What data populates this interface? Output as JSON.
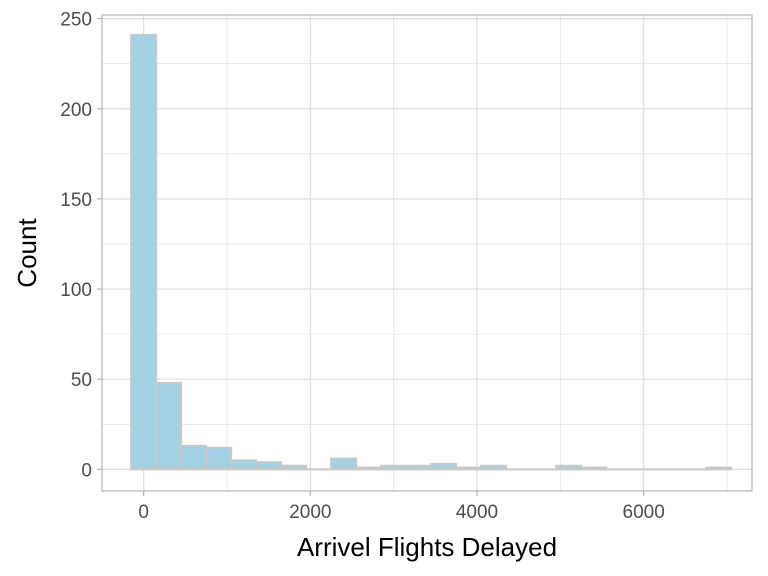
{
  "chart_data": {
    "type": "bar",
    "title": "",
    "xlabel": "Arrivel Flights Delayed",
    "ylabel": "Count",
    "xlim": [
      -500,
      7300
    ],
    "ylim": [
      -12,
      252
    ],
    "bin_width": 300,
    "x_ticks": [
      0,
      2000,
      4000,
      6000
    ],
    "x_tick_labels": [
      "0",
      "2000",
      "4000",
      "6000"
    ],
    "y_ticks": [
      0,
      50,
      100,
      150,
      200,
      250
    ],
    "y_tick_labels": [
      "0",
      "50",
      "100",
      "150",
      "200",
      "250"
    ],
    "bin_centers": [
      0,
      300,
      600,
      900,
      1200,
      1500,
      1800,
      2100,
      2400,
      2700,
      3000,
      3300,
      3600,
      3900,
      4200,
      4500,
      4800,
      5100,
      5400,
      5700,
      6000,
      6300,
      6600,
      6900
    ],
    "values": [
      241,
      48,
      13,
      12,
      5,
      4,
      2,
      0,
      6,
      1,
      2,
      2,
      3,
      1,
      2,
      0,
      0,
      2,
      1,
      0,
      0,
      0,
      0,
      1
    ],
    "bar_fill": "#a3d1e3",
    "bar_stroke": "#c8c8c8",
    "grid": true,
    "grid_color": "#dedede",
    "panel_border": "#b3b3b3"
  }
}
